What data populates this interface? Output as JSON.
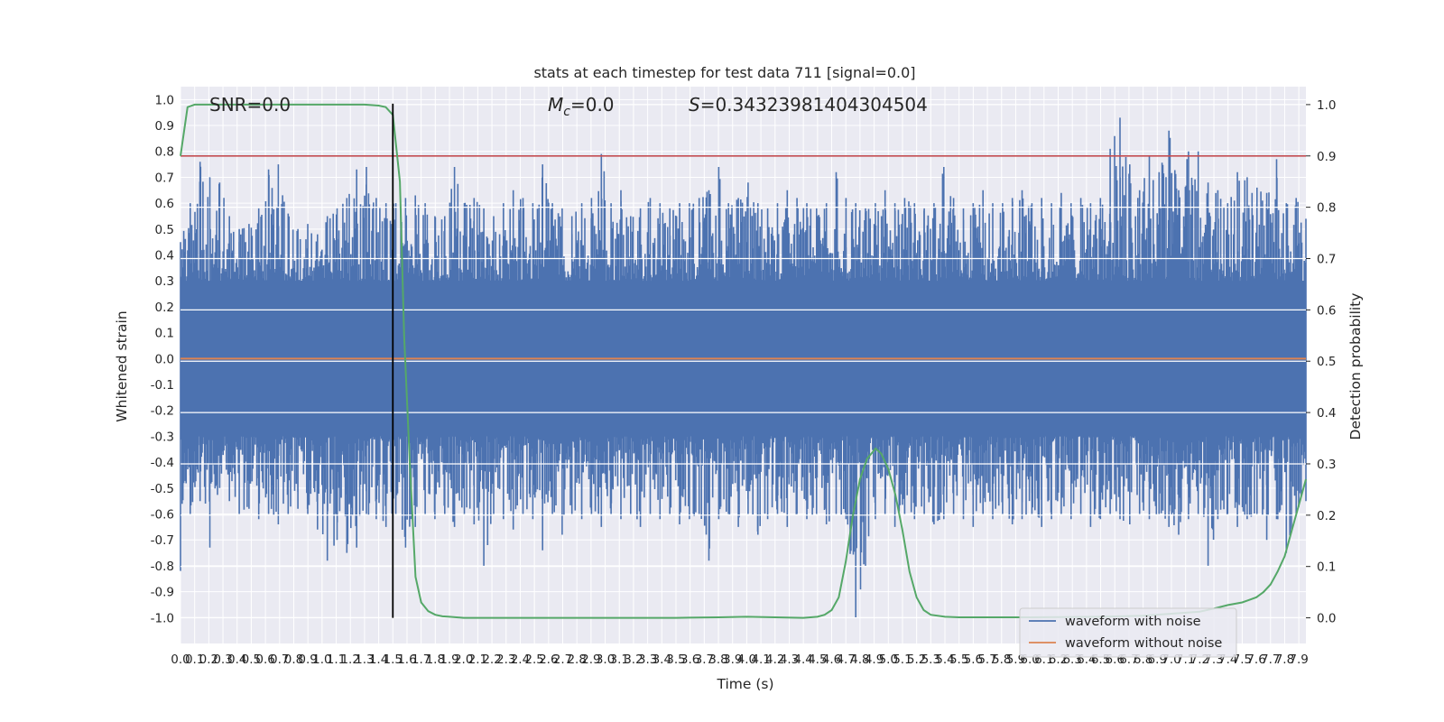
{
  "chart_data": {
    "type": "line",
    "title": "stats at each timestep for test data 711 [signal=0.0]",
    "xlabel": "Time (s)",
    "ylabel": "Whitened strain",
    "y2label": "Detection probability",
    "xlim": [
      0.0,
      7.95
    ],
    "ylim": [
      -1.1,
      1.05
    ],
    "y2lim": [
      -0.05,
      1.035
    ],
    "x_ticks": [
      "0.0",
      "0.1",
      "0.2",
      "0.3",
      "0.4",
      "0.5",
      "0.6",
      "0.7",
      "0.8",
      "0.9",
      "1.0",
      "1.1",
      "1.2",
      "1.3",
      "1.4",
      "1.5",
      "1.6",
      "1.7",
      "1.8",
      "1.9",
      "2.0",
      "2.1",
      "2.2",
      "2.3",
      "2.4",
      "2.5",
      "2.6",
      "2.7",
      "2.8",
      "2.9",
      "3.0",
      "3.1",
      "3.2",
      "3.3",
      "3.4",
      "3.5",
      "3.6",
      "3.7",
      "3.8",
      "3.9",
      "4.0",
      "4.1",
      "4.2",
      "4.3",
      "4.4",
      "4.5",
      "4.6",
      "4.7",
      "4.8",
      "4.9",
      "5.0",
      "5.1",
      "5.2",
      "5.3",
      "5.4",
      "5.5",
      "5.6",
      "5.7",
      "5.8",
      "5.9",
      "6.0",
      "6.1",
      "6.2",
      "6.3",
      "6.4",
      "6.5",
      "6.6",
      "6.7",
      "6.8",
      "6.9",
      "7.0",
      "7.1",
      "7.2",
      "7.3",
      "7.4",
      "7.5",
      "7.6",
      "7.7",
      "7.8",
      "7.9"
    ],
    "y_ticks": [
      "1.0",
      "0.9",
      "0.8",
      "0.7",
      "0.6",
      "0.5",
      "0.4",
      "0.3",
      "0.2",
      "0.1",
      "0.0",
      "-0.1",
      "-0.2",
      "-0.3",
      "-0.4",
      "-0.5",
      "-0.6",
      "-0.7",
      "-0.8",
      "-0.9",
      "-1.0"
    ],
    "y2_ticks": [
      "1.0",
      "0.9",
      "0.8",
      "0.7",
      "0.6",
      "0.5",
      "0.4",
      "0.3",
      "0.2",
      "0.1",
      "0.0"
    ],
    "annotations": {
      "snr": "SNR=0.0",
      "mc_symbol": "M",
      "mc_sub": "c",
      "mc_value": "=0.0",
      "s_symbol": "S",
      "s_value": "=0.34323981404304504"
    },
    "series": [
      {
        "name": "waveform with noise",
        "color": "#4c72b0",
        "envelope_upper": [
          0.45,
          0.6,
          0.76,
          0.7,
          0.68,
          0.55,
          0.5,
          0.52,
          0.58,
          0.73,
          0.75,
          0.56,
          0.5,
          0.52,
          0.48,
          0.55,
          0.58,
          0.62,
          0.73,
          0.74,
          0.62,
          0.6,
          0.6,
          0.62,
          0.63,
          0.6,
          0.55,
          0.55,
          0.74,
          0.6,
          0.62,
          0.58,
          0.55,
          0.6,
          0.65,
          0.62,
          0.6,
          0.75,
          0.6,
          0.58,
          0.55,
          0.6,
          0.62,
          0.79,
          0.6,
          0.65,
          0.55,
          0.58,
          0.62,
          0.6,
          0.58,
          0.6,
          0.6,
          0.62,
          0.65,
          0.74,
          0.6,
          0.62,
          0.68,
          0.6,
          0.58,
          0.6,
          0.65,
          0.62,
          0.6,
          0.58,
          0.6,
          0.72,
          0.62,
          0.6,
          0.58,
          0.6,
          0.65,
          0.6,
          0.62,
          0.6,
          0.58,
          0.6,
          0.74,
          0.62,
          0.58,
          0.6,
          0.65,
          0.6,
          0.6,
          0.62,
          0.65,
          0.6,
          0.62,
          0.6,
          0.64,
          0.6,
          0.62,
          0.6,
          0.62,
          0.81,
          0.93,
          0.75,
          0.65,
          0.78,
          0.72,
          0.88,
          0.65,
          0.8,
          0.8,
          0.68,
          0.65,
          0.6,
          0.72,
          0.7,
          0.66,
          0.64,
          0.77,
          0.6,
          0.62,
          0.54
        ],
        "envelope_lower": [
          -0.82,
          -0.6,
          -0.55,
          -0.73,
          -0.5,
          -0.55,
          -0.6,
          -0.58,
          -0.62,
          -0.6,
          -0.64,
          -0.6,
          -0.58,
          -0.6,
          -0.66,
          -0.78,
          -0.7,
          -0.75,
          -0.73,
          -0.6,
          -0.62,
          -0.65,
          -0.6,
          -0.73,
          -0.65,
          -0.6,
          -0.62,
          -0.6,
          -0.65,
          -0.6,
          -0.64,
          -0.8,
          -0.6,
          -0.62,
          -0.66,
          -0.6,
          -0.62,
          -0.74,
          -0.6,
          -0.68,
          -0.6,
          -0.62,
          -0.6,
          -0.65,
          -0.6,
          -0.62,
          -0.6,
          -0.65,
          -0.6,
          -0.62,
          -0.6,
          -0.64,
          -0.62,
          -0.6,
          -0.78,
          -0.62,
          -0.6,
          -0.65,
          -0.6,
          -0.68,
          -0.62,
          -0.6,
          -0.65,
          -0.6,
          -0.62,
          -0.6,
          -0.64,
          -0.6,
          -0.62,
          -1.0,
          -0.8,
          -0.62,
          -0.6,
          -0.65,
          -0.6,
          -0.62,
          -0.6,
          -0.64,
          -0.62,
          -0.6,
          -0.62,
          -0.65,
          -0.6,
          -0.62,
          -0.6,
          -0.64,
          -0.62,
          -0.6,
          -0.65,
          -0.62,
          -0.6,
          -0.62,
          -0.6,
          -0.65,
          -0.62,
          -0.6,
          -0.62,
          -0.64,
          -0.6,
          -0.62,
          -0.6,
          -0.65,
          -0.68,
          -0.62,
          -0.6,
          -0.8,
          -0.62,
          -0.6,
          -0.65,
          -0.62,
          -0.6,
          -0.7,
          -0.62,
          -0.75,
          -0.6,
          -0.55
        ]
      },
      {
        "name": "waveform without noise",
        "color": "#dd8452",
        "x": [
          0.0,
          7.95
        ],
        "y": [
          0.0,
          0.0
        ]
      },
      {
        "name": "Detection probability",
        "axis": "right",
        "color": "#55a868",
        "x": [
          0.0,
          0.05,
          0.1,
          0.2,
          0.4,
          0.8,
          1.0,
          1.2,
          1.3,
          1.4,
          1.45,
          1.5,
          1.55,
          1.58,
          1.62,
          1.66,
          1.7,
          1.75,
          1.8,
          1.85,
          1.9,
          1.95,
          2.0,
          2.2,
          2.5,
          3.0,
          3.5,
          3.8,
          4.0,
          4.2,
          4.4,
          4.5,
          4.55,
          4.6,
          4.65,
          4.7,
          4.75,
          4.8,
          4.85,
          4.88,
          4.91,
          4.95,
          5.0,
          5.05,
          5.1,
          5.15,
          5.2,
          5.25,
          5.3,
          5.4,
          5.5,
          6.0,
          6.5,
          6.8,
          7.0,
          7.2,
          7.3,
          7.4,
          7.5,
          7.55,
          7.6,
          7.65,
          7.7,
          7.75,
          7.8,
          7.85,
          7.9,
          7.95
        ],
        "y": [
          0.9,
          0.995,
          1.0,
          1.0,
          1.0,
          1.0,
          1.0,
          1.0,
          1.0,
          0.998,
          0.995,
          0.98,
          0.85,
          0.55,
          0.3,
          0.08,
          0.03,
          0.013,
          0.006,
          0.003,
          0.002,
          0.001,
          0.0,
          0.0,
          0.0,
          0.0,
          0.0,
          0.001,
          0.002,
          0.001,
          0.0,
          0.002,
          0.006,
          0.015,
          0.04,
          0.11,
          0.2,
          0.27,
          0.31,
          0.32,
          0.33,
          0.32,
          0.29,
          0.24,
          0.17,
          0.09,
          0.04,
          0.015,
          0.006,
          0.002,
          0.001,
          0.001,
          0.002,
          0.004,
          0.008,
          0.012,
          0.018,
          0.025,
          0.03,
          0.035,
          0.04,
          0.05,
          0.065,
          0.09,
          0.12,
          0.17,
          0.22,
          0.27
        ]
      }
    ],
    "reference_lines": {
      "threshold_y2": 0.9,
      "threshold_color": "#c44e52",
      "marker_time": 1.5,
      "marker_color": "#000000"
    },
    "legend": {
      "position": "lower-right",
      "entries": [
        "waveform with noise",
        "waveform without noise"
      ]
    },
    "grid": true
  }
}
